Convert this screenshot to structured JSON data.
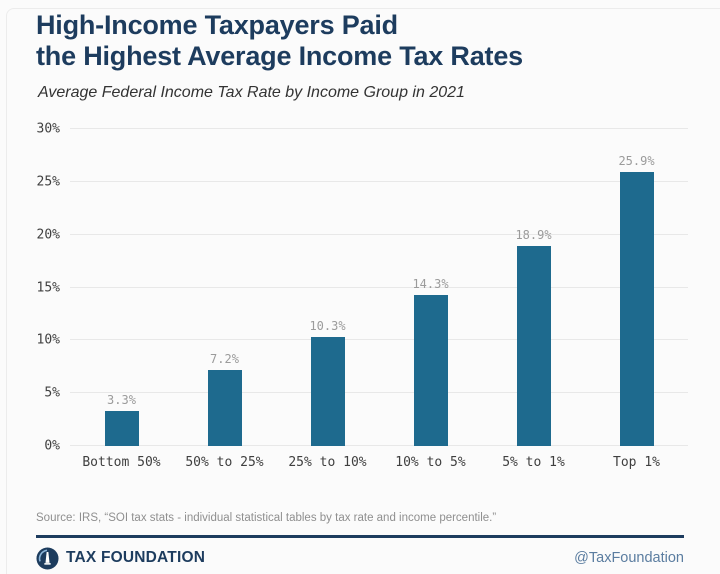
{
  "header": {
    "title_line1": "High-Income Taxpayers Paid",
    "title_line2": "the Highest Average Income Tax Rates",
    "subtitle": "Average Federal Income Tax Rate by Income Group in 2021"
  },
  "chart_data": {
    "type": "bar",
    "title": "High-Income Taxpayers Paid the Highest Average Income Tax Rates",
    "subtitle": "Average Federal Income Tax Rate by Income Group in 2021",
    "categories": [
      "Bottom 50%",
      "50% to 25%",
      "25% to 10%",
      "10% to 5%",
      "5% to 1%",
      "Top 1%"
    ],
    "values": [
      3.3,
      7.2,
      10.3,
      14.3,
      18.9,
      25.9
    ],
    "data_labels": [
      "3.3%",
      "7.2%",
      "10.3%",
      "14.3%",
      "18.9%",
      "25.9%"
    ],
    "xlabel": "",
    "ylabel": "",
    "ylim": [
      0,
      30
    ],
    "ytick_interval": 5,
    "yticks": [
      "0%",
      "5%",
      "10%",
      "15%",
      "20%",
      "25%",
      "30%"
    ],
    "grid": true,
    "legend": false,
    "bar_color": "#1e6a8e",
    "data_label_color": "#9b9b9b",
    "gridline_color": "#e8e8e8"
  },
  "footer": {
    "source": "Source: IRS, “SOI tax stats - individual statistical tables by tax rate and income percentile.”",
    "brand": "TAX FOUNDATION",
    "handle": "@TaxFoundation"
  },
  "colors": {
    "accent_navy": "#1d3c5e",
    "bar_teal": "#1e6a8e",
    "background": "#fbfbfb"
  }
}
